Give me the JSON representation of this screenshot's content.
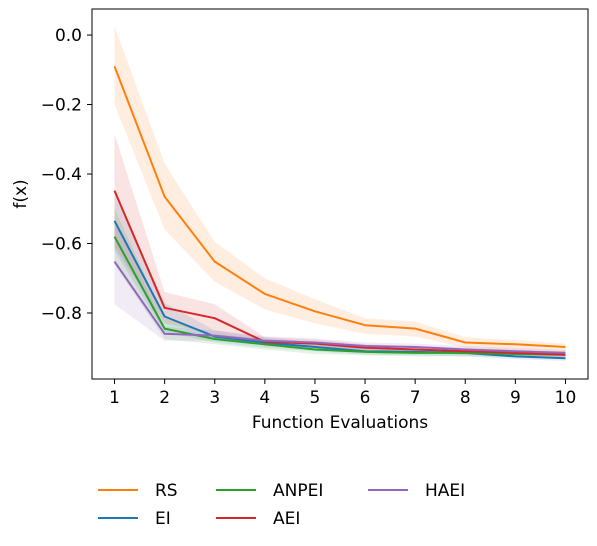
{
  "chart_data": {
    "type": "line",
    "title": "",
    "xlabel": "Function Evaluations",
    "ylabel": "f(x)",
    "x": [
      1,
      2,
      3,
      4,
      5,
      6,
      7,
      8,
      9,
      10
    ],
    "xticks": [
      "1",
      "2",
      "3",
      "4",
      "5",
      "6",
      "7",
      "8",
      "9",
      "10"
    ],
    "yticks": [
      0.0,
      -0.2,
      -0.4,
      -0.6,
      -0.8
    ],
    "ytick_labels": [
      "0.0",
      "−0.2",
      "−0.4",
      "−0.6",
      "−0.8"
    ],
    "xlim": [
      0.55,
      10.45
    ],
    "ylim": [
      -0.99,
      0.075
    ],
    "grid": false,
    "legend_position": "below",
    "series": [
      {
        "name": "RS",
        "color": "#ff7f0e",
        "values": [
          -0.09,
          -0.465,
          -0.652,
          -0.745,
          -0.795,
          -0.835,
          -0.845,
          -0.885,
          -0.89,
          -0.898
        ],
        "lower": [
          -0.2,
          -0.56,
          -0.71,
          -0.79,
          -0.83,
          -0.86,
          -0.868,
          -0.9,
          -0.905,
          -0.91
        ],
        "upper": [
          0.025,
          -0.37,
          -0.595,
          -0.7,
          -0.76,
          -0.815,
          -0.825,
          -0.87,
          -0.878,
          -0.888
        ]
      },
      {
        "name": "EI",
        "color": "#1f77b4",
        "values": [
          -0.535,
          -0.81,
          -0.868,
          -0.885,
          -0.898,
          -0.91,
          -0.912,
          -0.915,
          -0.925,
          -0.93
        ],
        "lower": [
          -0.62,
          -0.855,
          -0.885,
          -0.9,
          -0.91,
          -0.92,
          -0.922,
          -0.925,
          -0.933,
          -0.938
        ],
        "upper": [
          -0.46,
          -0.77,
          -0.85,
          -0.87,
          -0.885,
          -0.9,
          -0.902,
          -0.905,
          -0.917,
          -0.922
        ]
      },
      {
        "name": "ANPEI",
        "color": "#2ca02c",
        "values": [
          -0.58,
          -0.845,
          -0.875,
          -0.89,
          -0.905,
          -0.912,
          -0.915,
          -0.915,
          -0.918,
          -0.92
        ],
        "lower": [
          -0.66,
          -0.875,
          -0.89,
          -0.905,
          -0.918,
          -0.922,
          -0.925,
          -0.925,
          -0.927,
          -0.93
        ],
        "upper": [
          -0.5,
          -0.815,
          -0.86,
          -0.875,
          -0.892,
          -0.902,
          -0.905,
          -0.905,
          -0.909,
          -0.91
        ]
      },
      {
        "name": "AEI",
        "color": "#d62728",
        "values": [
          -0.448,
          -0.785,
          -0.815,
          -0.883,
          -0.888,
          -0.9,
          -0.905,
          -0.91,
          -0.915,
          -0.92
        ],
        "lower": [
          -0.61,
          -0.83,
          -0.86,
          -0.895,
          -0.9,
          -0.91,
          -0.915,
          -0.92,
          -0.925,
          -0.93
        ],
        "upper": [
          -0.285,
          -0.74,
          -0.775,
          -0.87,
          -0.876,
          -0.89,
          -0.895,
          -0.9,
          -0.905,
          -0.91
        ]
      },
      {
        "name": "HAEI",
        "color": "#9467bd",
        "values": [
          -0.652,
          -0.86,
          -0.865,
          -0.88,
          -0.885,
          -0.895,
          -0.898,
          -0.905,
          -0.91,
          -0.915
        ],
        "lower": [
          -0.775,
          -0.88,
          -0.88,
          -0.893,
          -0.897,
          -0.905,
          -0.908,
          -0.915,
          -0.92,
          -0.925
        ],
        "upper": [
          -0.53,
          -0.84,
          -0.85,
          -0.867,
          -0.873,
          -0.885,
          -0.888,
          -0.895,
          -0.9,
          -0.905
        ]
      }
    ],
    "legend_order": [
      "RS",
      "EI",
      "ANPEI",
      "AEI",
      "HAEI"
    ]
  }
}
